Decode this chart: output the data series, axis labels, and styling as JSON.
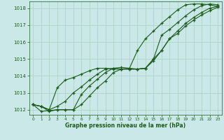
{
  "bg_color": "#cbe8e8",
  "grid_color": "#b0d4c8",
  "line_color": "#1a5c1a",
  "xlabel": "Graphe pression niveau de la mer (hPa)",
  "xlabel_color": "#1a5c1a",
  "ylim": [
    1011.7,
    1018.4
  ],
  "xlim": [
    -0.5,
    23.5
  ],
  "yticks": [
    1012,
    1013,
    1014,
    1015,
    1016,
    1017,
    1018
  ],
  "xticks": [
    0,
    1,
    2,
    3,
    4,
    5,
    6,
    7,
    8,
    9,
    10,
    11,
    12,
    13,
    14,
    15,
    16,
    17,
    18,
    19,
    20,
    21,
    22,
    23
  ],
  "series": [
    [
      1012.3,
      1012.2,
      1011.9,
      1012.0,
      1012.0,
      1012.0,
      1012.9,
      1013.4,
      1013.8,
      1014.2,
      1014.45,
      1014.5,
      1014.45,
      1014.4,
      1014.45,
      1014.9,
      1015.5,
      1016.2,
      1016.65,
      1017.1,
      1017.45,
      1017.75,
      1018.0,
      1018.1
    ],
    [
      1012.3,
      1011.9,
      1011.95,
      1012.0,
      1012.0,
      1012.0,
      1012.3,
      1012.8,
      1013.3,
      1013.7,
      1014.2,
      1014.4,
      1014.4,
      1014.4,
      1014.45,
      1015.0,
      1016.4,
      1016.75,
      1017.15,
      1017.55,
      1017.9,
      1018.15,
      1018.25,
      1018.2
    ],
    [
      1012.3,
      1012.2,
      1012.0,
      1013.3,
      1013.75,
      1013.9,
      1014.1,
      1014.3,
      1014.45,
      1014.45,
      1014.4,
      1014.4,
      1014.45,
      1015.5,
      1016.2,
      1016.65,
      1017.1,
      1017.5,
      1017.9,
      1018.2,
      1018.25,
      1018.25,
      1018.2,
      1018.1
    ],
    [
      1012.3,
      1012.2,
      1012.0,
      1012.2,
      1012.5,
      1013.0,
      1013.35,
      1013.75,
      1014.1,
      1014.4,
      1014.45,
      1014.4,
      1014.4,
      1014.4,
      1014.45,
      1015.0,
      1015.5,
      1016.2,
      1016.5,
      1016.95,
      1017.3,
      1017.6,
      1017.85,
      1018.05
    ]
  ]
}
